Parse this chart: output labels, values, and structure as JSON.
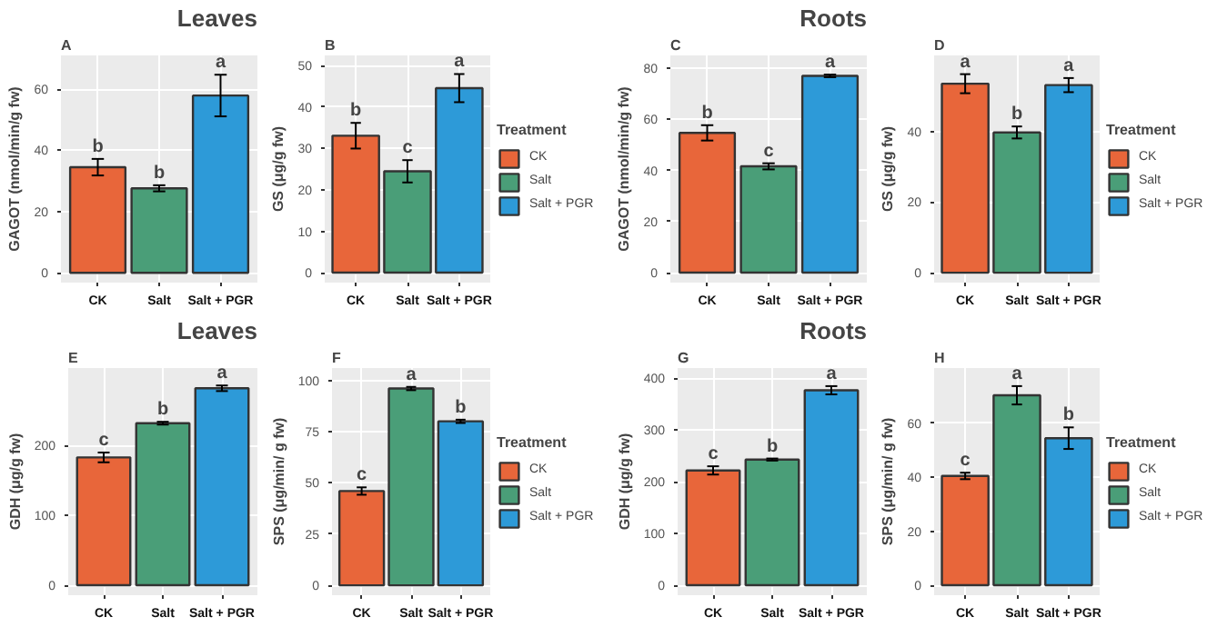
{
  "chart_data": [
    {
      "type": "bar",
      "title": "A",
      "subtitle": "Leaves",
      "ylabel": "GAGOT (nmol/min/g fw)",
      "categories": [
        "CK",
        "Salt",
        "Salt + PGR"
      ],
      "values": [
        34.5,
        27.6,
        57.9
      ],
      "errors": [
        2.7,
        1.0,
        6.8
      ],
      "colors": [
        "#e8663a",
        "#4a9e78",
        "#2d9ad8"
      ],
      "ylim": [
        -3.2,
        71
      ],
      "yticks": [
        0,
        20,
        40,
        60
      ],
      "grid": true,
      "annotations": [
        {
          "text": "b",
          "x": "CK",
          "y": 37.2
        },
        {
          "text": "b",
          "x": "Salt",
          "y": 28.6
        },
        {
          "text": "a",
          "x": "Salt + PGR",
          "y": 64.7
        }
      ]
    },
    {
      "type": "bar",
      "title": "B",
      "ylabel": "GS (μg/g fw)",
      "categories": [
        "CK",
        "Salt",
        "Salt + PGR"
      ],
      "ylim": [
        -2.4,
        52.5
      ],
      "yticks": [
        0,
        10,
        20,
        30,
        40,
        50
      ],
      "grid": true,
      "legend": "right",
      "legend_title": "Treatment",
      "series": [
        {
          "name": "CK",
          "color": "#e8663a",
          "values": [
            33.1,
            null,
            null
          ],
          "errors": [
            3.1,
            null,
            null
          ]
        },
        {
          "name": "Salt",
          "color": "#4a9e78",
          "values": [
            null,
            24.5,
            null
          ],
          "errors": [
            null,
            2.7,
            null
          ]
        },
        {
          "name": "Salt + PGR",
          "color": "#2d9ad8",
          "values": [
            null,
            null,
            44.6
          ],
          "errors": [
            null,
            null,
            3.4
          ]
        }
      ],
      "annotations": [
        {
          "text": "b",
          "x": "CK",
          "y": 36.2
        },
        {
          "text": "c",
          "x": "Salt",
          "y": 27.2
        },
        {
          "text": "a",
          "x": "Salt + PGR",
          "y": 48.0
        }
      ]
    },
    {
      "type": "bar",
      "title": "C",
      "subtitle": "Roots",
      "ylabel": "GAGOT (nmol/min/g fw)",
      "categories": [
        "CK",
        "Salt",
        "Salt + PGR"
      ],
      "values": [
        54.7,
        41.6,
        77.0
      ],
      "errors": [
        3.0,
        1.2,
        0.5
      ],
      "colors": [
        "#e8663a",
        "#4a9e78",
        "#2d9ad8"
      ],
      "ylim": [
        -3.9,
        85
      ],
      "yticks": [
        0,
        20,
        40,
        60,
        80
      ],
      "grid": true,
      "annotations": [
        {
          "text": "b",
          "x": "CK",
          "y": 57.7
        },
        {
          "text": "c",
          "x": "Salt",
          "y": 42.8
        },
        {
          "text": "a",
          "x": "Salt + PGR",
          "y": 77.5
        }
      ]
    },
    {
      "type": "bar",
      "title": "D",
      "ylabel": "GS (μg/g fw)",
      "categories": [
        "CK",
        "Salt",
        "Salt + PGR"
      ],
      "ylim": [
        -2.8,
        61.5
      ],
      "yticks": [
        0,
        20,
        40
      ],
      "grid": true,
      "legend": "right",
      "legend_title": "Treatment",
      "series": [
        {
          "name": "CK",
          "color": "#e8663a",
          "values": [
            53.5,
            null,
            null
          ],
          "errors": [
            2.7,
            null,
            null
          ]
        },
        {
          "name": "Salt",
          "color": "#4a9e78",
          "values": [
            null,
            39.7,
            null
          ],
          "errors": [
            null,
            1.7,
            null
          ]
        },
        {
          "name": "Salt + PGR",
          "color": "#2d9ad8",
          "values": [
            null,
            null,
            53.1
          ],
          "errors": [
            null,
            null,
            2.0
          ]
        }
      ],
      "annotations": [
        {
          "text": "a",
          "x": "CK",
          "y": 56.2
        },
        {
          "text": "b",
          "x": "Salt",
          "y": 41.4
        },
        {
          "text": "a",
          "x": "Salt + PGR",
          "y": 55.1
        }
      ]
    },
    {
      "type": "bar",
      "title": "E",
      "subtitle": "Leaves",
      "ylabel": "GDH (μg/g fw)",
      "categories": [
        "CK",
        "Salt",
        "Salt + PGR"
      ],
      "values": [
        183,
        232,
        282
      ],
      "errors": [
        7,
        2,
        4
      ],
      "colors": [
        "#e8663a",
        "#4a9e78",
        "#2d9ad8"
      ],
      "ylim": [
        -14.3,
        311
      ],
      "yticks": [
        0,
        100,
        200
      ],
      "grid": true,
      "annotations": [
        {
          "text": "c",
          "x": "CK",
          "y": 190
        },
        {
          "text": "b",
          "x": "Salt",
          "y": 234
        },
        {
          "text": "a",
          "x": "Salt + PGR",
          "y": 286
        }
      ]
    },
    {
      "type": "bar",
      "title": "F",
      "ylabel": "SPS (μg/min/ g fw)",
      "categories": [
        "CK",
        "Salt",
        "Salt + PGR"
      ],
      "ylim": [
        -4.8,
        106
      ],
      "yticks": [
        0,
        25,
        50,
        75,
        100
      ],
      "grid": true,
      "legend": "right",
      "legend_title": "Treatment",
      "series": [
        {
          "name": "CK",
          "color": "#e8663a",
          "values": [
            46,
            null,
            null
          ],
          "errors": [
            1.8,
            null,
            null
          ]
        },
        {
          "name": "Salt",
          "color": "#4a9e78",
          "values": [
            null,
            96,
            null
          ],
          "errors": [
            null,
            0.8,
            null
          ]
        },
        {
          "name": "Salt + PGR",
          "color": "#2d9ad8",
          "values": [
            null,
            null,
            80
          ],
          "errors": [
            null,
            null,
            0.8
          ]
        }
      ],
      "annotations": [
        {
          "text": "c",
          "x": "CK",
          "y": 47.8
        },
        {
          "text": "a",
          "x": "Salt",
          "y": 96.8
        },
        {
          "text": "b",
          "x": "Salt + PGR",
          "y": 80.8
        }
      ]
    },
    {
      "type": "bar",
      "title": "G",
      "subtitle": "Roots",
      "ylabel": "GDH (μg/g fw)",
      "categories": [
        "CK",
        "Salt",
        "Salt + PGR"
      ],
      "values": [
        222,
        243,
        377
      ],
      "errors": [
        8,
        2,
        8
      ],
      "colors": [
        "#e8663a",
        "#4a9e78",
        "#2d9ad8"
      ],
      "ylim": [
        -19.3,
        420
      ],
      "yticks": [
        0,
        100,
        200,
        300,
        400
      ],
      "grid": true,
      "annotations": [
        {
          "text": "c",
          "x": "CK",
          "y": 230
        },
        {
          "text": "b",
          "x": "Salt",
          "y": 245
        },
        {
          "text": "a",
          "x": "Salt + PGR",
          "y": 385
        }
      ]
    },
    {
      "type": "bar",
      "title": "H",
      "ylabel": "SPS (μg/min/ g fw)",
      "categories": [
        "CK",
        "Salt",
        "Salt + PGR"
      ],
      "ylim": [
        -3.7,
        80.5
      ],
      "yticks": [
        0,
        20,
        40,
        60
      ],
      "grid": true,
      "legend": "right",
      "legend_title": "Treatment",
      "series": [
        {
          "name": "CK",
          "color": "#e8663a",
          "values": [
            40.5,
            null,
            null
          ],
          "errors": [
            1.2,
            null,
            null
          ]
        },
        {
          "name": "Salt",
          "color": "#4a9e78",
          "values": [
            null,
            70.4,
            null
          ],
          "errors": [
            null,
            3.4,
            null
          ]
        },
        {
          "name": "Salt + PGR",
          "color": "#2d9ad8",
          "values": [
            null,
            null,
            54.5
          ],
          "errors": [
            null,
            null,
            4.0
          ]
        }
      ],
      "annotations": [
        {
          "text": "c",
          "x": "CK",
          "y": 41.7
        },
        {
          "text": "a",
          "x": "Salt",
          "y": 73.8
        },
        {
          "text": "b",
          "x": "Salt + PGR",
          "y": 58.5
        }
      ]
    }
  ]
}
